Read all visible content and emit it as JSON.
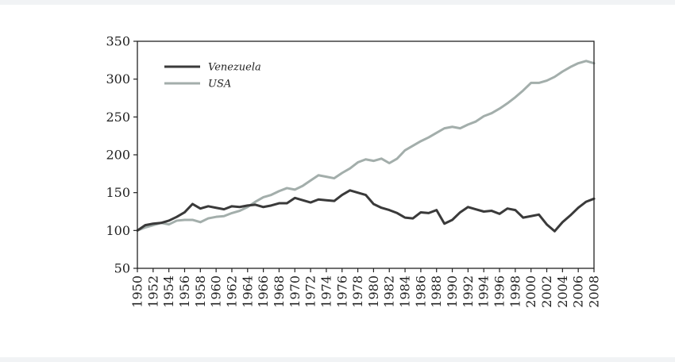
{
  "chart_data": {
    "type": "line",
    "title": "",
    "xlabel": "",
    "ylabel": "",
    "xlim": [
      1950,
      2008
    ],
    "ylim": [
      50,
      350
    ],
    "yticks": [
      50,
      100,
      150,
      200,
      250,
      300,
      350
    ],
    "xticks": [
      1950,
      1952,
      1954,
      1956,
      1958,
      1960,
      1962,
      1964,
      1966,
      1968,
      1970,
      1972,
      1974,
      1976,
      1978,
      1980,
      1982,
      1984,
      1986,
      1988,
      1990,
      1992,
      1994,
      1996,
      1998,
      2000,
      2002,
      2004,
      2006,
      2008
    ],
    "grid": false,
    "legend_position": "top-left",
    "x": [
      1950,
      1951,
      1952,
      1953,
      1954,
      1955,
      1956,
      1957,
      1958,
      1959,
      1960,
      1961,
      1962,
      1963,
      1964,
      1965,
      1966,
      1967,
      1968,
      1969,
      1970,
      1971,
      1972,
      1973,
      1974,
      1975,
      1976,
      1977,
      1978,
      1979,
      1980,
      1981,
      1982,
      1983,
      1984,
      1985,
      1986,
      1987,
      1988,
      1989,
      1990,
      1991,
      1992,
      1993,
      1994,
      1995,
      1996,
      1997,
      1998,
      1999,
      2000,
      2001,
      2002,
      2003,
      2004,
      2005,
      2006,
      2007,
      2008
    ],
    "series": [
      {
        "name": "Venezuela",
        "color": "#3a3a3a",
        "values": [
          100,
          107,
          109,
          110,
          113,
          118,
          124,
          135,
          129,
          132,
          130,
          128,
          132,
          131,
          133,
          134,
          131,
          133,
          136,
          136,
          143,
          140,
          137,
          141,
          140,
          139,
          147,
          153,
          150,
          147,
          135,
          130,
          127,
          123,
          117,
          116,
          124,
          123,
          127,
          109,
          114,
          124,
          131,
          128,
          125,
          126,
          122,
          129,
          127,
          117,
          119,
          121,
          108,
          99,
          111,
          120,
          130,
          138,
          142
        ]
      },
      {
        "name": "USA",
        "color": "#a3aeab",
        "values": [
          100,
          104,
          107,
          110,
          108,
          113,
          114,
          114,
          111,
          116,
          118,
          119,
          123,
          126,
          131,
          138,
          144,
          147,
          152,
          156,
          154,
          159,
          166,
          173,
          171,
          169,
          176,
          182,
          190,
          194,
          192,
          195,
          189,
          195,
          206,
          212,
          218,
          223,
          229,
          235,
          237,
          235,
          240,
          244,
          251,
          255,
          261,
          268,
          276,
          285,
          295,
          295,
          298,
          303,
          310,
          316,
          321,
          324,
          321
        ]
      }
    ]
  },
  "legend": {
    "venezuela_label": "Venezuela",
    "usa_label": "USA"
  }
}
